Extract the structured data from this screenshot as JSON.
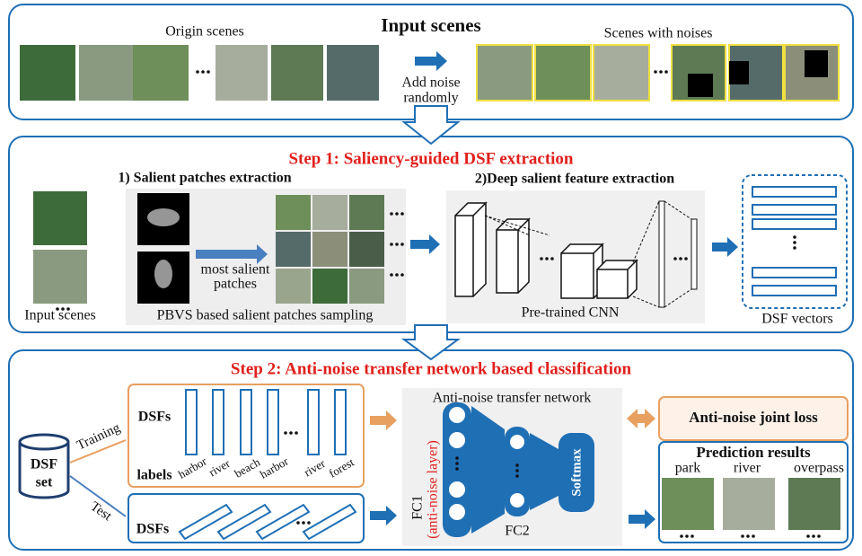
{
  "input_panel": {
    "title": "Input scenes",
    "origin_label": "Origin scenes",
    "noise_label": "Scenes with noises",
    "add_noise": [
      "Add noise",
      "randomly"
    ]
  },
  "step1": {
    "title": "Step 1: Saliency-guided DSF extraction",
    "sub1": "1) Salient patches extraction",
    "input_label": "Input scenes",
    "arrow_label": [
      "most salient",
      "patches"
    ],
    "sampling_label": "PBVS based salient patches sampling",
    "sub2": "2)Deep salient feature extraction",
    "cnn_label": "Pre-trained CNN",
    "vector_label": "DSF vectors"
  },
  "step2": {
    "title": "Step 2: Anti-noise transfer network based classification",
    "dsf_set": [
      "DSF",
      "set"
    ],
    "training": "Training",
    "test": "Test",
    "train_dsfs": "DSFs",
    "labels_title": "labels",
    "labels": [
      "harbor",
      "river",
      "beach",
      "harbor",
      "river",
      "forest"
    ],
    "test_dsfs": "DSFs",
    "network_title": "Anti-noise transfer network",
    "fc1": "FC1",
    "fc1_note": "(anti-noise layer)",
    "fc2": "FC2",
    "softmax": "Softmax",
    "loss": "Anti-noise joint loss",
    "prediction": {
      "title": "Prediction results",
      "classes": [
        "park",
        "river",
        "overpass"
      ]
    }
  }
}
